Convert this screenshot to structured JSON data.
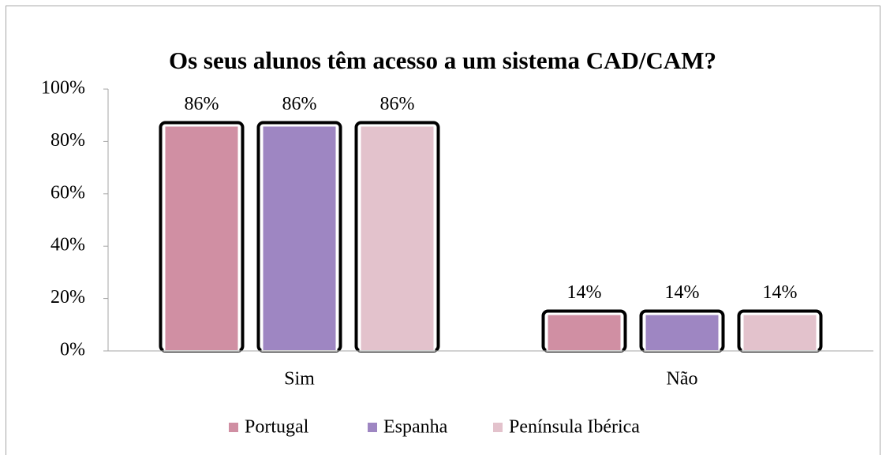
{
  "chart_data": {
    "type": "bar",
    "title": "Os seus alunos têm acesso a um sistema CAD/CAM?",
    "categories": [
      "Sim",
      "Não"
    ],
    "series": [
      {
        "name": "Portugal",
        "color": "#d08fa3",
        "values": [
          86,
          14
        ],
        "value_labels": [
          "86%",
          "14%"
        ]
      },
      {
        "name": "Espanha",
        "color": "#9e86c2",
        "values": [
          86,
          14
        ],
        "value_labels": [
          "86%",
          "14%"
        ]
      },
      {
        "name": "Península Ibérica",
        "color": "#e3c2cc",
        "values": [
          86,
          14
        ],
        "value_labels": [
          "86%",
          "14%"
        ]
      }
    ],
    "ylim": [
      0,
      100
    ],
    "yticks": [
      {
        "value": 0,
        "label": "0%"
      },
      {
        "value": 20,
        "label": "20%"
      },
      {
        "value": 40,
        "label": "40%"
      },
      {
        "value": 60,
        "label": "60%"
      },
      {
        "value": 80,
        "label": "80%"
      },
      {
        "value": 100,
        "label": "100%"
      }
    ],
    "legend": "bottom"
  }
}
